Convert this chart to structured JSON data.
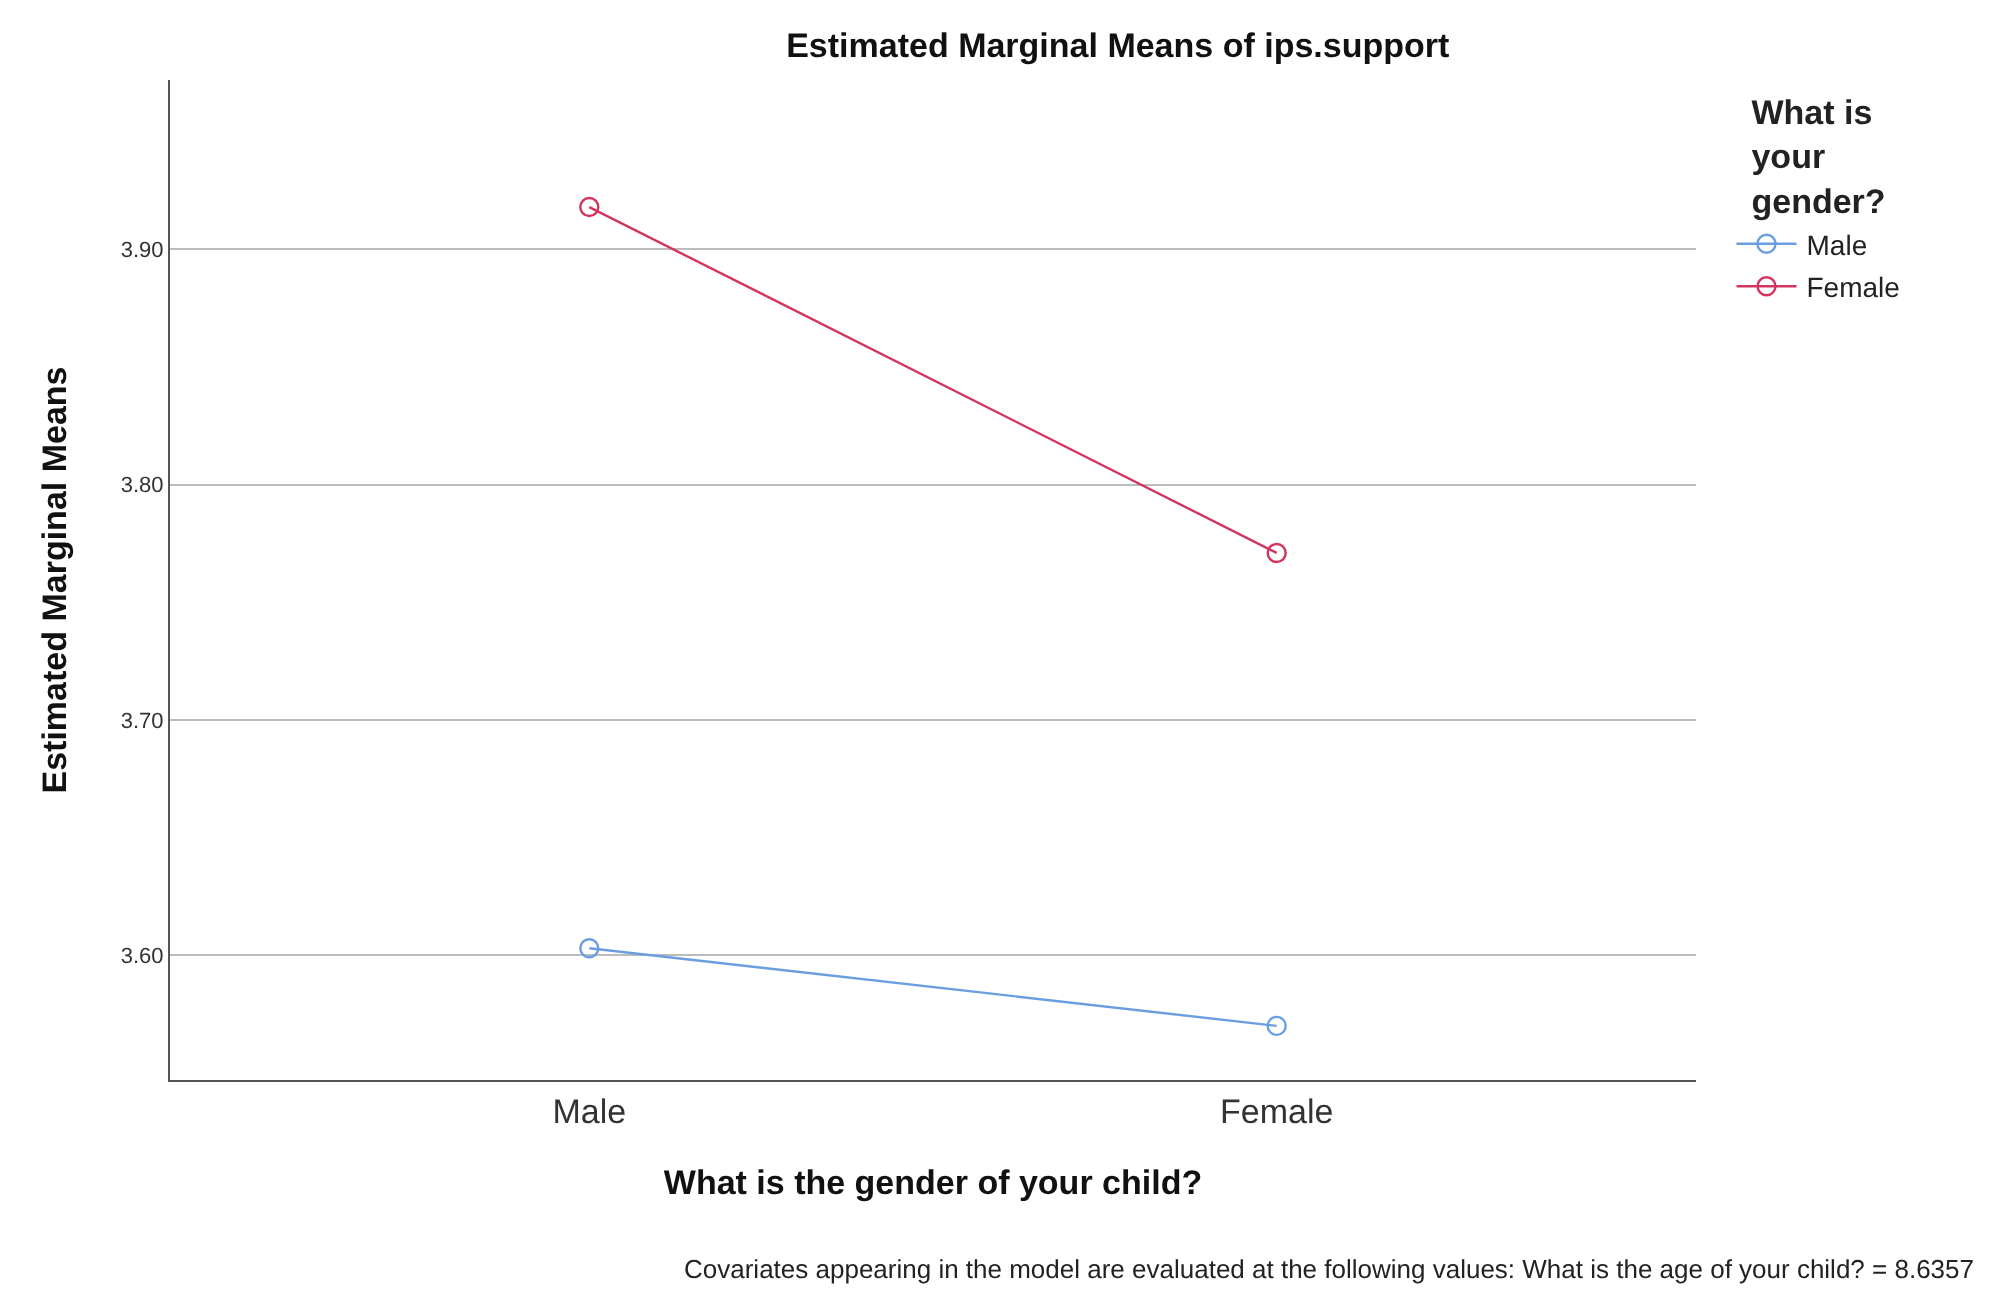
{
  "chart_data": {
    "type": "line",
    "title": "Estimated Marginal Means of ips.support",
    "xlabel": "What is the gender of your child?",
    "ylabel": "Estimated Marginal Means",
    "legend_title": "What is your gender?",
    "categories": [
      "Male",
      "Female"
    ],
    "series": [
      {
        "name": "Male",
        "color": "#6a9ee0",
        "values": [
          3.603,
          3.57
        ]
      },
      {
        "name": "Female",
        "color": "#d1365f",
        "values": [
          3.918,
          3.771
        ]
      }
    ],
    "ylim": [
      3.547,
      3.972
    ],
    "yticks": [
      {
        "value": 3.6,
        "label": "3.60"
      },
      {
        "value": 3.7,
        "label": "3.70"
      },
      {
        "value": 3.8,
        "label": "3.80"
      },
      {
        "value": 3.9,
        "label": "3.90"
      }
    ],
    "grid": "y",
    "legend": "top right",
    "marker": "circle",
    "line_style": "solid",
    "annotations": [
      "Covariates appearing in the model are evaluated at the following values: What is the age of your child? = 8.6357"
    ]
  }
}
